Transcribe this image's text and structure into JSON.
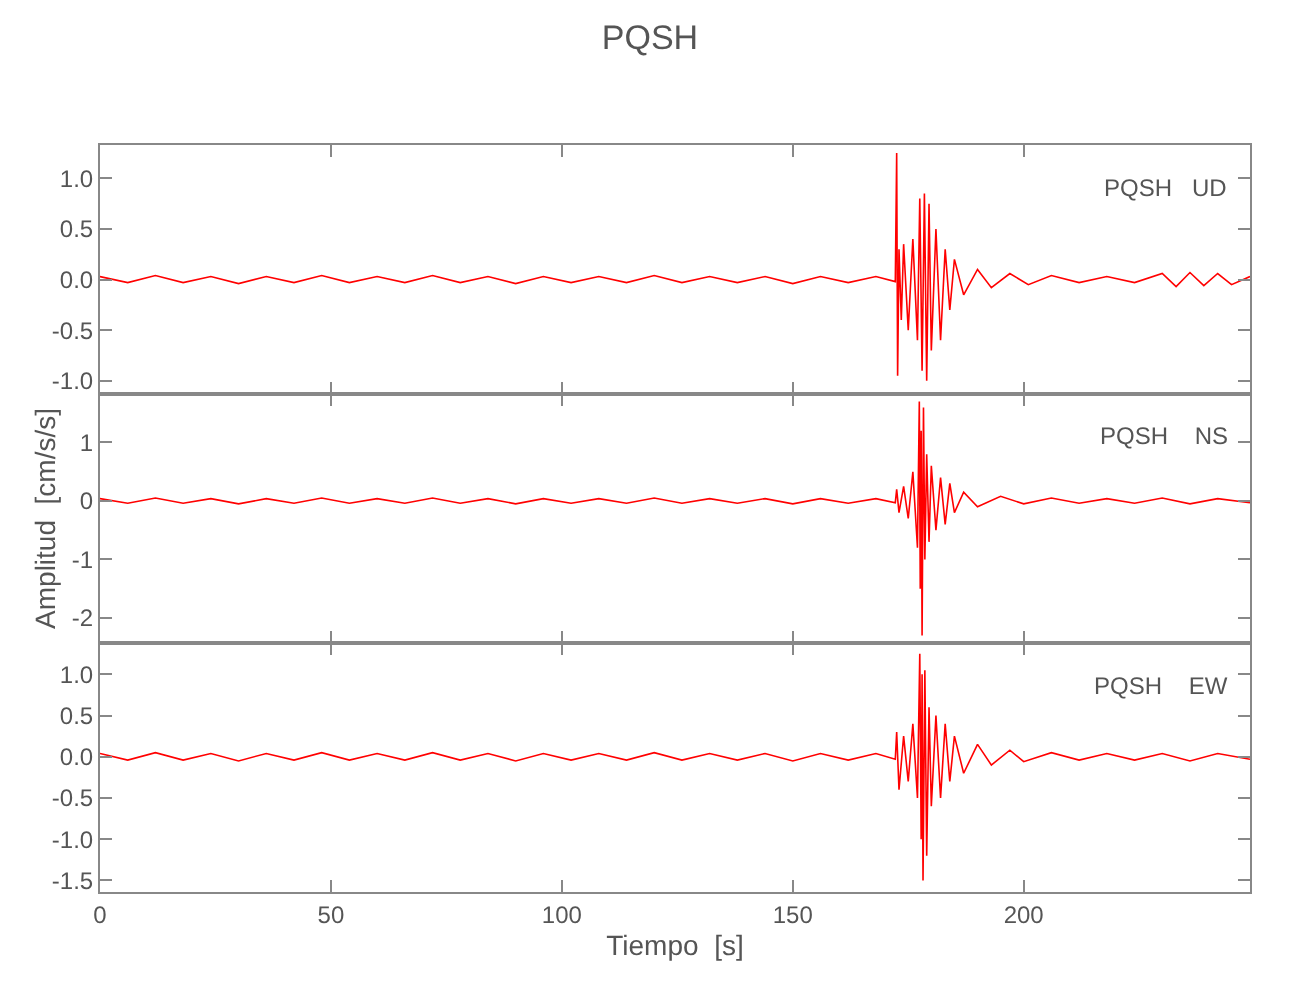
{
  "chart_data": [
    {
      "type": "line",
      "title": "PQSH",
      "annotations": [
        "PQSH   UD"
      ],
      "tick_labels": "y",
      "xlim": [
        0,
        249
      ],
      "ylim": [
        -1.13,
        1.33
      ],
      "yticks": [
        {
          "value": -1,
          "label": "-1.0"
        },
        {
          "value": -0.5,
          "label": "-0.5"
        },
        {
          "value": 0,
          "label": "0.0"
        },
        {
          "value": 0.5,
          "label": "0.5"
        },
        {
          "value": 1,
          "label": "1.0"
        }
      ],
      "xticks": [
        0,
        50,
        100,
        150,
        200
      ],
      "series": [
        {
          "color": "#ff0000",
          "x": [
            0,
            6,
            12,
            18,
            24,
            30,
            36,
            42,
            48,
            54,
            60,
            66,
            72,
            78,
            84,
            90,
            96,
            102,
            108,
            114,
            120,
            126,
            132,
            138,
            144,
            150,
            156,
            162,
            168,
            172.2,
            172.5,
            172.7,
            173,
            173.5,
            174,
            175,
            176,
            177,
            177.5,
            178,
            178.5,
            179,
            179.5,
            180,
            181,
            182,
            183,
            184,
            185,
            187,
            190,
            193,
            197,
            201,
            206,
            212,
            218,
            224,
            230,
            233,
            236,
            239,
            242,
            245,
            249
          ],
          "values": [
            0.03,
            -0.03,
            0.04,
            -0.03,
            0.03,
            -0.04,
            0.03,
            -0.03,
            0.04,
            -0.03,
            0.03,
            -0.03,
            0.04,
            -0.03,
            0.03,
            -0.04,
            0.03,
            -0.03,
            0.03,
            -0.03,
            0.04,
            -0.03,
            0.03,
            -0.03,
            0.03,
            -0.04,
            0.03,
            -0.03,
            0.03,
            -0.02,
            1.25,
            -0.95,
            0.3,
            -0.4,
            0.35,
            -0.5,
            0.4,
            -0.6,
            0.8,
            -0.9,
            0.85,
            -1.0,
            0.75,
            -0.7,
            0.5,
            -0.6,
            0.3,
            -0.3,
            0.2,
            -0.15,
            0.1,
            -0.08,
            0.06,
            -0.05,
            0.04,
            -0.03,
            0.03,
            -0.03,
            0.06,
            -0.07,
            0.07,
            -0.06,
            0.06,
            -0.05,
            0.03
          ]
        }
      ]
    },
    {
      "type": "line",
      "ylabel": "Amplitud  [cm/s/s]",
      "annotations": [
        "PQSH    NS"
      ],
      "tick_labels": "y",
      "xlim": [
        0,
        249
      ],
      "ylim": [
        -2.43,
        1.83
      ],
      "yticks": [
        -2,
        -1,
        0,
        1
      ],
      "xticks": [
        0,
        50,
        100,
        150,
        200
      ],
      "series": [
        {
          "color": "#ff0000",
          "x": [
            0,
            6,
            12,
            18,
            24,
            30,
            36,
            42,
            48,
            54,
            60,
            66,
            72,
            78,
            84,
            90,
            96,
            102,
            108,
            114,
            120,
            126,
            132,
            138,
            144,
            150,
            156,
            162,
            168,
            172.2,
            172.5,
            173,
            174,
            175,
            176,
            177,
            177.4,
            177.6,
            177.8,
            178,
            178.3,
            178.6,
            179,
            179.5,
            180,
            181,
            182,
            183,
            184,
            185,
            187,
            190,
            195,
            200,
            206,
            212,
            218,
            224,
            230,
            236,
            242,
            249
          ],
          "values": [
            0.04,
            -0.04,
            0.05,
            -0.04,
            0.04,
            -0.05,
            0.04,
            -0.04,
            0.05,
            -0.04,
            0.04,
            -0.04,
            0.05,
            -0.04,
            0.04,
            -0.05,
            0.04,
            -0.04,
            0.04,
            -0.04,
            0.05,
            -0.04,
            0.04,
            -0.04,
            0.04,
            -0.05,
            0.04,
            -0.04,
            0.04,
            -0.03,
            0.2,
            -0.2,
            0.25,
            -0.3,
            0.5,
            -0.8,
            1.7,
            -1.5,
            1.2,
            -2.3,
            1.6,
            -1.0,
            0.8,
            -0.7,
            0.6,
            -0.5,
            0.4,
            -0.4,
            0.3,
            -0.2,
            0.15,
            -0.1,
            0.08,
            -0.05,
            0.05,
            -0.04,
            0.04,
            -0.04,
            0.05,
            -0.05,
            0.04,
            -0.03
          ]
        }
      ]
    },
    {
      "type": "line",
      "xlabel": "Tiempo  [s]",
      "annotations": [
        "PQSH    EW"
      ],
      "xlim": [
        0,
        249
      ],
      "ylim": [
        -1.64,
        1.38
      ],
      "yticks": [
        {
          "value": -1.5,
          "label": "-1.5"
        },
        {
          "value": -1,
          "label": "-1.0"
        },
        {
          "value": -0.5,
          "label": "-0.5"
        },
        {
          "value": 0,
          "label": "0.0"
        },
        {
          "value": 0.5,
          "label": "0.5"
        },
        {
          "value": 1,
          "label": "1.0"
        }
      ],
      "xticks": [
        0,
        50,
        100,
        150,
        200
      ],
      "series": [
        {
          "color": "#ff0000",
          "x": [
            0,
            6,
            12,
            18,
            24,
            30,
            36,
            42,
            48,
            54,
            60,
            66,
            72,
            78,
            84,
            90,
            96,
            102,
            108,
            114,
            120,
            126,
            132,
            138,
            144,
            150,
            156,
            162,
            168,
            172.2,
            172.5,
            173,
            174,
            175,
            176,
            177,
            177.5,
            177.8,
            178,
            178.2,
            178.6,
            179,
            179.5,
            180,
            181,
            182,
            183,
            184,
            185,
            187,
            190,
            193,
            197,
            200,
            206,
            212,
            218,
            224,
            230,
            236,
            242,
            249
          ],
          "values": [
            0.04,
            -0.04,
            0.05,
            -0.04,
            0.04,
            -0.05,
            0.04,
            -0.04,
            0.05,
            -0.04,
            0.04,
            -0.04,
            0.05,
            -0.04,
            0.04,
            -0.05,
            0.04,
            -0.04,
            0.04,
            -0.04,
            0.05,
            -0.04,
            0.04,
            -0.04,
            0.04,
            -0.05,
            0.04,
            -0.04,
            0.04,
            -0.03,
            0.3,
            -0.4,
            0.25,
            -0.3,
            0.4,
            -0.5,
            1.25,
            -1.0,
            1.0,
            -1.5,
            1.05,
            -1.2,
            0.6,
            -0.6,
            0.5,
            -0.5,
            0.4,
            -0.3,
            0.25,
            -0.2,
            0.15,
            -0.1,
            0.08,
            -0.06,
            0.05,
            -0.04,
            0.04,
            -0.04,
            0.04,
            -0.05,
            0.04,
            -0.03
          ]
        }
      ]
    }
  ]
}
